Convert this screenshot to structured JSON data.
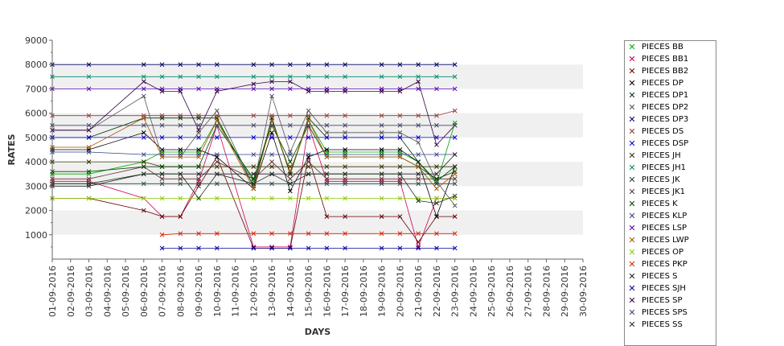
{
  "chart_data": {
    "type": "line",
    "title": "",
    "xlabel": "DAYS",
    "ylabel": "RATES",
    "ylim": [
      0,
      9000
    ],
    "yticks": [
      1000,
      2000,
      3000,
      4000,
      5000,
      6000,
      7000,
      8000,
      9000
    ],
    "grid_bands": true,
    "legend_position": "right",
    "categories": [
      "01-09-2016",
      "02-09-2016",
      "03-09-2016",
      "04-09-2016",
      "05-09-2016",
      "06-09-2016",
      "07-09-2016",
      "08-09-2016",
      "09-09-2016",
      "10-09-2016",
      "11-09-2016",
      "12-09-2016",
      "13-09-2016",
      "14-09-2016",
      "15-09-2016",
      "16-09-2016",
      "17-09-2016",
      "18-09-2016",
      "19-09-2016",
      "20-09-2016",
      "21-09-2016",
      "22-09-2016",
      "23-09-2016",
      "24-09-2016",
      "25-09-2016",
      "26-09-2016",
      "27-09-2016",
      "28-09-2016",
      "29-09-2016",
      "30-09-2016"
    ],
    "series": [
      {
        "name": "PIECES BB",
        "color": "#00aa00",
        "values": [
          3500,
          null,
          3500,
          null,
          null,
          4000,
          4400,
          4400,
          4400,
          5700,
          null,
          3200,
          5700,
          3500,
          5700,
          4400,
          4400,
          null,
          4400,
          4400,
          4000,
          3100,
          5600,
          null,
          null,
          null,
          null,
          null,
          null,
          null
        ]
      },
      {
        "name": "PIECES BB1",
        "color": "#cc0055",
        "values": [
          3200,
          null,
          3200,
          null,
          null,
          2500,
          1750,
          1750,
          3200,
          5500,
          null,
          500,
          500,
          500,
          5500,
          3200,
          3200,
          null,
          3200,
          3200,
          500,
          2500,
          2500,
          null,
          null,
          null,
          null,
          null,
          null,
          null
        ]
      },
      {
        "name": "PIECES BB2",
        "color": "#660000",
        "values": [
          2500,
          null,
          2500,
          null,
          null,
          2000,
          1750,
          1750,
          3000,
          4200,
          null,
          450,
          450,
          450,
          4200,
          1750,
          1750,
          null,
          1750,
          1750,
          700,
          1750,
          1750,
          null,
          null,
          null,
          null,
          null,
          null,
          null
        ]
      },
      {
        "name": "PIECES DP",
        "color": "#000000",
        "values": [
          4500,
          null,
          4500,
          null,
          null,
          5200,
          4500,
          4500,
          4500,
          4200,
          null,
          2900,
          5200,
          2800,
          4200,
          4500,
          4500,
          null,
          4500,
          4500,
          4000,
          1750,
          3800,
          null,
          null,
          null,
          null,
          null,
          null,
          null
        ]
      },
      {
        "name": "PIECES DP1",
        "color": "#003300",
        "values": [
          5000,
          null,
          5000,
          null,
          null,
          5800,
          5800,
          5800,
          5800,
          5800,
          null,
          3000,
          5800,
          3500,
          5800,
          5000,
          5000,
          null,
          5000,
          5000,
          4000,
          3200,
          3800,
          null,
          null,
          null,
          null,
          null,
          null,
          null
        ]
      },
      {
        "name": "PIECES DP2",
        "color": "#555555",
        "values": [
          5300,
          null,
          5300,
          null,
          null,
          6700,
          4200,
          4200,
          5200,
          6100,
          null,
          3000,
          6700,
          4400,
          6100,
          5200,
          5200,
          null,
          5200,
          5200,
          4800,
          3200,
          2200,
          null,
          null,
          null,
          null,
          null,
          null,
          null
        ]
      },
      {
        "name": "PIECES DP3",
        "color": "#000066",
        "values": [
          8000,
          null,
          8000,
          null,
          null,
          8000,
          8000,
          8000,
          8000,
          8000,
          null,
          8000,
          8000,
          8000,
          8000,
          8000,
          8000,
          null,
          8000,
          8000,
          8000,
          8000,
          8000,
          null,
          null,
          null,
          null,
          null,
          null,
          null
        ]
      },
      {
        "name": "PIECES DS",
        "color": "#993333",
        "values": [
          5900,
          null,
          5900,
          null,
          null,
          5900,
          5900,
          5900,
          5900,
          5900,
          null,
          5900,
          5900,
          5900,
          5900,
          5900,
          5900,
          null,
          5900,
          5900,
          5900,
          5900,
          6100,
          null,
          null,
          null,
          null,
          null,
          null,
          null
        ]
      },
      {
        "name": "PIECES DSP",
        "color": "#0000cc",
        "values": [
          5000,
          null,
          5000,
          null,
          null,
          5000,
          5000,
          5000,
          5000,
          5000,
          null,
          5000,
          5000,
          5000,
          5000,
          5000,
          5000,
          null,
          5000,
          5000,
          5000,
          5000,
          5000,
          null,
          null,
          null,
          null,
          null,
          null,
          null
        ]
      },
      {
        "name": "PIECES JH",
        "color": "#333300",
        "values": [
          4000,
          null,
          4000,
          null,
          null,
          4000,
          3800,
          3800,
          3800,
          3800,
          null,
          3800,
          3800,
          3800,
          3800,
          3800,
          3800,
          null,
          3800,
          3800,
          3800,
          3800,
          3800,
          null,
          null,
          null,
          null,
          null,
          null,
          null
        ]
      },
      {
        "name": "PIECES JH1",
        "color": "#008866",
        "values": [
          7500,
          null,
          7500,
          null,
          null,
          7500,
          7500,
          7500,
          7500,
          7500,
          null,
          7500,
          7500,
          7500,
          7500,
          7500,
          7500,
          null,
          7500,
          7500,
          7500,
          7500,
          7500,
          null,
          null,
          null,
          null,
          null,
          null,
          null
        ]
      },
      {
        "name": "PIECES JK",
        "color": "#224444",
        "values": [
          3100,
          null,
          3100,
          null,
          null,
          3100,
          3100,
          3100,
          3100,
          3100,
          null,
          3100,
          3100,
          3100,
          3100,
          3100,
          3100,
          null,
          3100,
          3100,
          3100,
          3100,
          3100,
          null,
          null,
          null,
          null,
          null,
          null,
          null
        ]
      },
      {
        "name": "PIECES JK1",
        "color": "#663333",
        "values": [
          3300,
          null,
          3300,
          null,
          null,
          3800,
          3300,
          3300,
          3300,
          4000,
          null,
          3300,
          4000,
          3300,
          4000,
          3300,
          3300,
          null,
          3300,
          3300,
          3300,
          3300,
          3300,
          null,
          null,
          null,
          null,
          null,
          null,
          null
        ]
      },
      {
        "name": "PIECES K",
        "color": "#004400",
        "values": [
          3600,
          null,
          3600,
          null,
          null,
          3800,
          3800,
          3800,
          3800,
          5500,
          null,
          3300,
          5500,
          4000,
          5500,
          4200,
          4200,
          null,
          4200,
          4200,
          3800,
          3300,
          3600,
          null,
          null,
          null,
          null,
          null,
          null,
          null
        ]
      },
      {
        "name": "PIECES KLP",
        "color": "#334488",
        "values": [
          4400,
          null,
          4400,
          null,
          null,
          4300,
          4300,
          4300,
          4300,
          4300,
          null,
          4300,
          4300,
          4300,
          4300,
          4300,
          4300,
          null,
          4300,
          4300,
          4300,
          4300,
          4300,
          null,
          null,
          null,
          null,
          null,
          null,
          null
        ]
      },
      {
        "name": "PIECES LSP",
        "color": "#5500aa",
        "values": [
          7000,
          null,
          7000,
          null,
          null,
          7000,
          7000,
          7000,
          7000,
          7000,
          null,
          7000,
          7000,
          7000,
          7000,
          7000,
          7000,
          null,
          7000,
          7000,
          7000,
          7000,
          7000,
          null,
          null,
          null,
          null,
          null,
          null,
          null
        ]
      },
      {
        "name": "PIECES LWP",
        "color": "#aa5500",
        "values": [
          4600,
          null,
          4600,
          null,
          null,
          5800,
          4200,
          4200,
          4200,
          5700,
          null,
          2900,
          5700,
          3600,
          5700,
          4200,
          4200,
          null,
          4200,
          4200,
          3800,
          2900,
          3500,
          null,
          null,
          null,
          null,
          null,
          null,
          null
        ]
      },
      {
        "name": "PIECES OP",
        "color": "#88cc00",
        "values": [
          2500,
          null,
          2500,
          null,
          null,
          2500,
          2500,
          2500,
          2500,
          2500,
          null,
          2500,
          2500,
          2500,
          2500,
          2500,
          2500,
          null,
          2500,
          2500,
          2500,
          2500,
          2500,
          null,
          null,
          null,
          null,
          null,
          null,
          null
        ]
      },
      {
        "name": "PIECES PKP",
        "color": "#dd2200",
        "values": [
          null,
          null,
          null,
          null,
          null,
          null,
          1000,
          1050,
          1050,
          1050,
          null,
          1050,
          1050,
          1050,
          1050,
          1050,
          1050,
          null,
          1050,
          1050,
          1050,
          1050,
          1050,
          null,
          null,
          null,
          null,
          null,
          null,
          null
        ]
      },
      {
        "name": "PIECES S",
        "color": "#222222",
        "values": [
          3000,
          null,
          3000,
          null,
          null,
          3500,
          3500,
          3500,
          3500,
          3500,
          null,
          3500,
          3500,
          3500,
          3500,
          3500,
          3500,
          null,
          3500,
          3500,
          3500,
          3500,
          4300,
          null,
          null,
          null,
          null,
          null,
          null,
          null
        ]
      },
      {
        "name": "PIECES SJH",
        "color": "#000099",
        "values": [
          null,
          null,
          null,
          null,
          null,
          null,
          450,
          450,
          450,
          450,
          null,
          450,
          450,
          450,
          450,
          450,
          450,
          null,
          450,
          450,
          450,
          450,
          450,
          null,
          null,
          null,
          null,
          null,
          null,
          null
        ]
      },
      {
        "name": "PIECES SP",
        "color": "#330044",
        "values": [
          5300,
          null,
          5300,
          null,
          null,
          7300,
          6900,
          6900,
          5300,
          6900,
          null,
          7200,
          7300,
          7300,
          6900,
          6900,
          6900,
          null,
          6900,
          6900,
          7300,
          4700,
          5500,
          null,
          null,
          null,
          null,
          null,
          null,
          null
        ]
      },
      {
        "name": "PIECES SPS",
        "color": "#444466",
        "values": [
          5500,
          null,
          5500,
          null,
          null,
          5500,
          5500,
          5500,
          5500,
          5500,
          null,
          5500,
          5500,
          5500,
          5500,
          5500,
          5500,
          null,
          5500,
          5500,
          5500,
          5500,
          5500,
          null,
          null,
          null,
          null,
          null,
          null,
          null
        ]
      },
      {
        "name": "PIECES SS",
        "color": "#223322",
        "values": [
          3100,
          null,
          3100,
          null,
          null,
          3500,
          3500,
          3500,
          2500,
          3500,
          null,
          3100,
          3500,
          3100,
          3500,
          3500,
          3500,
          null,
          3500,
          3500,
          2400,
          2300,
          2600,
          null,
          null,
          null,
          null,
          null,
          null,
          null
        ]
      }
    ]
  }
}
